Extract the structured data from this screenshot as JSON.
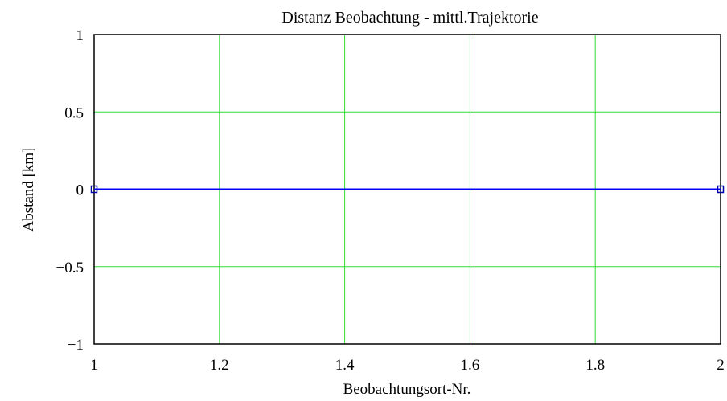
{
  "chart_data": {
    "type": "line",
    "title": "Distanz Beobachtung - mittl.Trajektorie",
    "xlabel": "Beobachtungsort-Nr.",
    "ylabel": "Abstand [km]",
    "xlim": [
      1,
      2
    ],
    "ylim": [
      -1,
      1
    ],
    "x_ticks": [
      1,
      1.2,
      1.4,
      1.6,
      1.8,
      2
    ],
    "x_tick_labels": [
      "1",
      "1.2",
      "1.4",
      "1.6",
      "1.8",
      "2"
    ],
    "y_ticks": [
      1,
      0.5,
      0,
      -0.5,
      -1
    ],
    "y_tick_labels": [
      "1",
      "0.5",
      "0",
      "−0.5",
      "−1"
    ],
    "grid": true,
    "series": [
      {
        "x": [
          1,
          2
        ],
        "y": [
          0,
          0
        ],
        "marker": "square"
      }
    ],
    "colors": {
      "grid": "#33dd33",
      "line": "#0000ff",
      "marker": "#0000aa",
      "frame": "#000000"
    }
  }
}
